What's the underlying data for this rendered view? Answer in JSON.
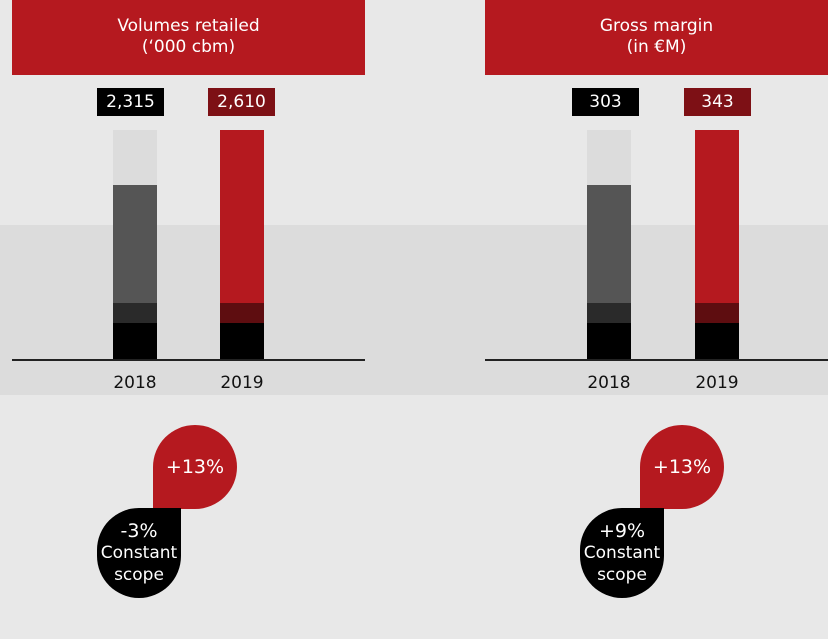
{
  "panels": [
    {
      "title": [
        "Volumes retailed",
        "(‘000 cbm)"
      ],
      "columns": [
        {
          "year": "2018",
          "label": "2,315"
        },
        {
          "year": "2019",
          "label": "2,610"
        }
      ],
      "growth": "+13%",
      "constant": {
        "value": "-3%",
        "text": [
          "Constant",
          "scope"
        ]
      }
    },
    {
      "title": [
        "Gross margin",
        "(in €M)"
      ],
      "columns": [
        {
          "year": "2018",
          "label": "303"
        },
        {
          "year": "2019",
          "label": "343"
        }
      ],
      "growth": "+13%",
      "constant": {
        "value": "+9%",
        "text": [
          "Constant",
          "scope"
        ]
      }
    }
  ]
}
